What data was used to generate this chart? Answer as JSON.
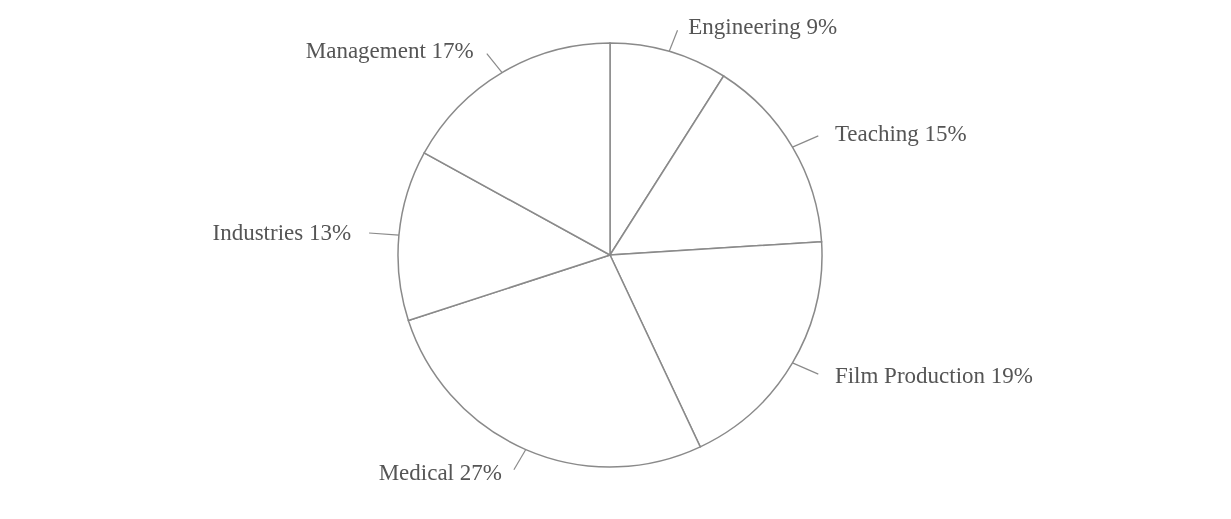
{
  "chart_data": {
    "type": "pie",
    "categories": [
      "Engineering",
      "Teaching",
      "Film Production",
      "Medical",
      "Industries",
      "Management"
    ],
    "values": [
      9,
      15,
      19,
      27,
      13,
      17
    ],
    "value_labels": [
      "9%",
      "15%",
      "19%",
      "27%",
      "13%",
      "17%"
    ],
    "colors": [
      "#ffffff",
      "#ffffff",
      "#ffffff",
      "#ffffff",
      "#ffffff",
      "#ffffff"
    ]
  }
}
